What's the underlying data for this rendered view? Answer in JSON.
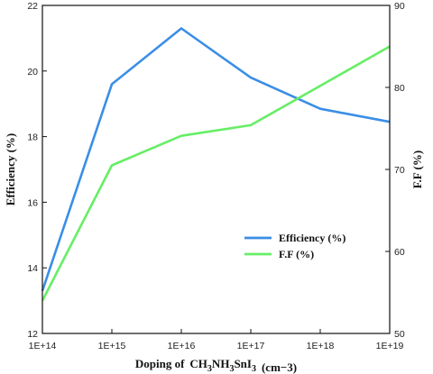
{
  "chart_data": {
    "type": "line",
    "x": [
      "1E+14",
      "1E+15",
      "1E+16",
      "1E+17",
      "1E+18",
      "1E+19"
    ],
    "x_ticks": [
      "1E+14",
      "1E+15",
      "1E+16",
      "1E+17",
      "1E+18",
      "1E+19"
    ],
    "xlabel": {
      "prefix": "Doping of",
      "formula": "CH3NH3SnI3",
      "unit": "(cm−3)"
    },
    "ylabel_left": "Efficiency (%)",
    "ylabel_right": "F.F (%)",
    "ylim_left": [
      12,
      22
    ],
    "ylim_right": [
      50,
      90
    ],
    "y_ticks_left": [
      "12",
      "14",
      "16",
      "18",
      "20",
      "22"
    ],
    "y_ticks_right": [
      "50",
      "60",
      "70",
      "80",
      "90"
    ],
    "grid": false,
    "legend_position": "center-right",
    "series": [
      {
        "name": "Efficiency (%)",
        "axis": "left",
        "color": "#3a8ee6",
        "values": [
          13.3,
          19.6,
          21.3,
          19.8,
          18.85,
          18.45
        ]
      },
      {
        "name": "F.F (%)",
        "axis": "right",
        "color": "#66ee66",
        "values": [
          54,
          70.5,
          74.1,
          75.4,
          80.2,
          85
        ]
      }
    ]
  }
}
